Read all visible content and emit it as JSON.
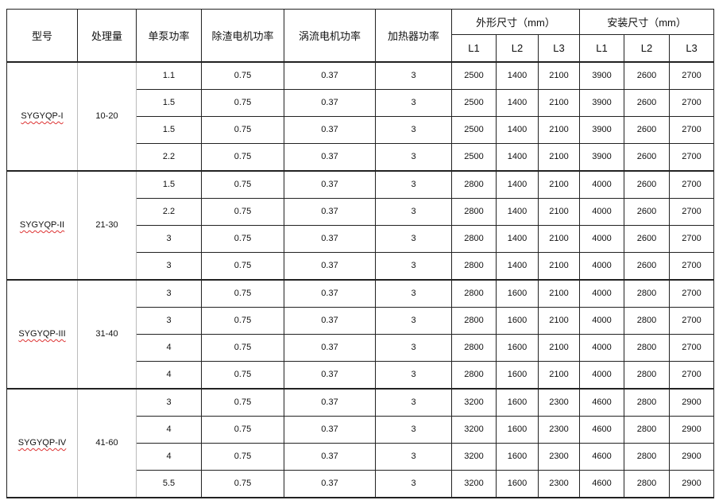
{
  "headers": {
    "model": "型号",
    "capacity": "处理量",
    "pump_power": "单泵功率",
    "slag_motor_power": "除渣电机功率",
    "vortex_motor_power": "涡流电机功率",
    "heater_power": "加热器功率",
    "outer_size": "外形尺寸（mm）",
    "install_size": "安装尺寸（mm）",
    "sub": [
      "L1",
      "L2",
      "L3",
      "L1",
      "L2",
      "L3"
    ]
  },
  "groups": [
    {
      "model": "SYGYQP-I",
      "capacity": "10-20",
      "rows": [
        [
          "1.1",
          "0.75",
          "0.37",
          "3",
          "2500",
          "1400",
          "2100",
          "3900",
          "2600",
          "2700"
        ],
        [
          "1.5",
          "0.75",
          "0.37",
          "3",
          "2500",
          "1400",
          "2100",
          "3900",
          "2600",
          "2700"
        ],
        [
          "1.5",
          "0.75",
          "0.37",
          "3",
          "2500",
          "1400",
          "2100",
          "3900",
          "2600",
          "2700"
        ],
        [
          "2.2",
          "0.75",
          "0.37",
          "3",
          "2500",
          "1400",
          "2100",
          "3900",
          "2600",
          "2700"
        ]
      ]
    },
    {
      "model": "SYGYQP-II",
      "capacity": "21-30",
      "rows": [
        [
          "1.5",
          "0.75",
          "0.37",
          "3",
          "2800",
          "1400",
          "2100",
          "4000",
          "2600",
          "2700"
        ],
        [
          "2.2",
          "0.75",
          "0.37",
          "3",
          "2800",
          "1400",
          "2100",
          "4000",
          "2600",
          "2700"
        ],
        [
          "3",
          "0.75",
          "0.37",
          "3",
          "2800",
          "1400",
          "2100",
          "4000",
          "2600",
          "2700"
        ],
        [
          "3",
          "0.75",
          "0.37",
          "3",
          "2800",
          "1400",
          "2100",
          "4000",
          "2600",
          "2700"
        ]
      ]
    },
    {
      "model": "SYGYQP-III",
      "capacity": "31-40",
      "rows": [
        [
          "3",
          "0.75",
          "0.37",
          "3",
          "2800",
          "1600",
          "2100",
          "4000",
          "2800",
          "2700"
        ],
        [
          "3",
          "0.75",
          "0.37",
          "3",
          "2800",
          "1600",
          "2100",
          "4000",
          "2800",
          "2700"
        ],
        [
          "4",
          "0.75",
          "0.37",
          "3",
          "2800",
          "1600",
          "2100",
          "4000",
          "2800",
          "2700"
        ],
        [
          "4",
          "0.75",
          "0.37",
          "3",
          "2800",
          "1600",
          "2100",
          "4000",
          "2800",
          "2700"
        ]
      ]
    },
    {
      "model": "SYGYQP-IV",
      "capacity": "41-60",
      "rows": [
        [
          "3",
          "0.75",
          "0.37",
          "3",
          "3200",
          "1600",
          "2300",
          "4600",
          "2800",
          "2900"
        ],
        [
          "4",
          "0.75",
          "0.37",
          "3",
          "3200",
          "1600",
          "2300",
          "4600",
          "2800",
          "2900"
        ],
        [
          "4",
          "0.75",
          "0.37",
          "3",
          "3200",
          "1600",
          "2300",
          "4600",
          "2800",
          "2900"
        ],
        [
          "5.5",
          "0.75",
          "0.37",
          "3",
          "3200",
          "1600",
          "2300",
          "4600",
          "2800",
          "2900"
        ]
      ]
    }
  ]
}
